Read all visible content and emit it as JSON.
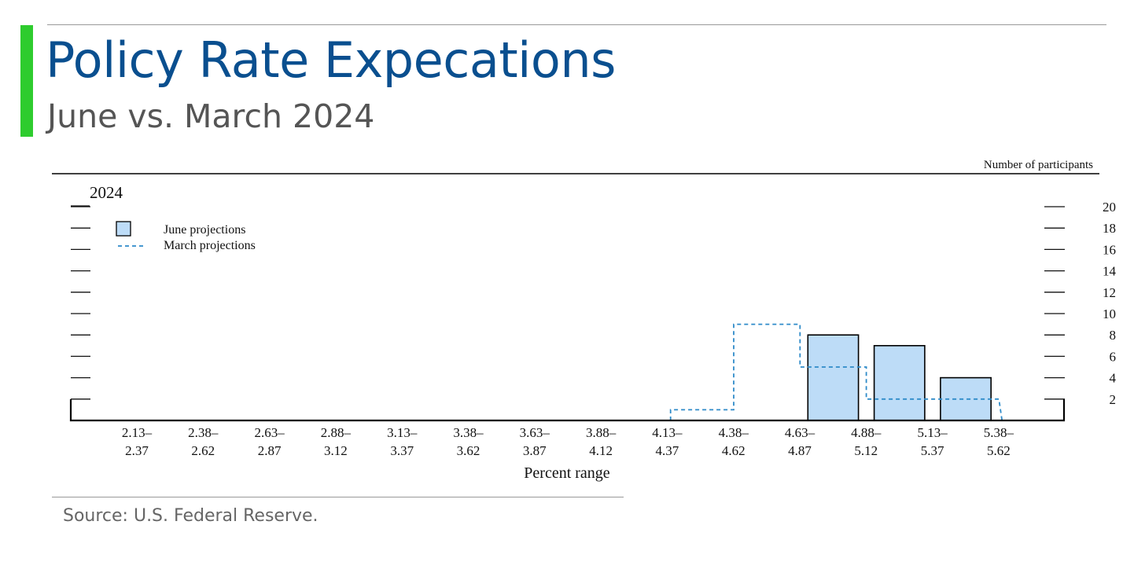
{
  "header": {
    "title": "Policy Rate Expecations",
    "subtitle": "June vs. March 2024"
  },
  "source": "Source: U.S. Federal Reserve.",
  "colors": {
    "accent": "#2ecc2e",
    "title": "#0a4f8f",
    "june_fill": "#bddcf7",
    "march_line": "#2f8bc9"
  },
  "chart_data": {
    "type": "bar",
    "panel_label": "2024",
    "ylabel": "Number of participants",
    "xlabel": "Percent range",
    "ylim": [
      0,
      20
    ],
    "y_ticks": [
      2,
      4,
      6,
      8,
      10,
      12,
      14,
      16,
      18,
      20
    ],
    "categories": [
      [
        "2.13–",
        "2.37"
      ],
      [
        "2.38–",
        "2.62"
      ],
      [
        "2.63–",
        "2.87"
      ],
      [
        "2.88–",
        "3.12"
      ],
      [
        "3.13–",
        "3.37"
      ],
      [
        "3.38–",
        "3.62"
      ],
      [
        "3.63–",
        "3.87"
      ],
      [
        "3.88–",
        "4.12"
      ],
      [
        "4.13–",
        "4.37"
      ],
      [
        "4.38–",
        "4.62"
      ],
      [
        "4.63–",
        "4.87"
      ],
      [
        "4.88–",
        "5.12"
      ],
      [
        "5.13–",
        "5.37"
      ],
      [
        "5.38–",
        "5.62"
      ]
    ],
    "series": [
      {
        "name": "June projections",
        "style": "bar",
        "values": [
          0,
          0,
          0,
          0,
          0,
          0,
          0,
          0,
          0,
          0,
          0,
          8,
          7,
          4
        ]
      },
      {
        "name": "March projections",
        "style": "dashed-step",
        "values": [
          0,
          0,
          0,
          0,
          0,
          0,
          0,
          0,
          0,
          1,
          9,
          5,
          2,
          2
        ]
      }
    ],
    "legend_position": "top-left"
  }
}
